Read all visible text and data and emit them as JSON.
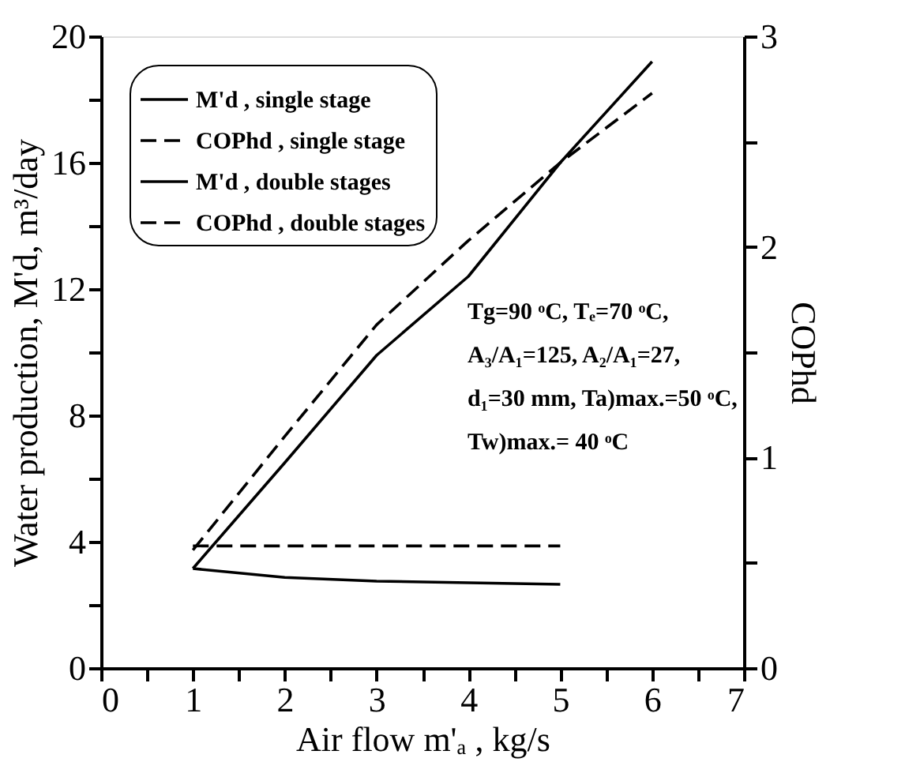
{
  "chart_data": {
    "type": "line",
    "xlabel": "Air flow m'ₐ , kg/s",
    "ylabel": "Water production, M'd, m³/day",
    "y2label": "COPhd",
    "series": [
      {
        "name": "M'd , single stage",
        "color": "#000000",
        "line_style": "solid",
        "x": [
          1,
          2,
          3,
          4,
          5
        ],
        "values": [
          3.15,
          2.87,
          2.75,
          2.7,
          2.65
        ]
      },
      {
        "name": "COPhd , single stage",
        "color": "#000000",
        "line_style": "dashed",
        "axis": "y2",
        "x": [
          1,
          5
        ],
        "values": [
          0.58,
          0.58
        ]
      },
      {
        "name": "M'd , double stages",
        "color": "#000000",
        "line_style": "solid",
        "x": [
          1,
          2,
          3,
          4,
          5,
          6
        ],
        "values": [
          3.15,
          6.5,
          9.9,
          12.4,
          16.0,
          19.2
        ]
      },
      {
        "name": "COPhd , double stages",
        "color": "#000000",
        "line_style": "dashed",
        "axis": "y2",
        "x": [
          1,
          2,
          3,
          4,
          5,
          6
        ],
        "values": [
          0.56,
          1.1,
          1.63,
          2.03,
          2.4,
          2.73
        ]
      }
    ],
    "xlim": [
      0,
      7
    ],
    "xticks": [
      0,
      {
        "value": 0.5,
        "label": null
      },
      1,
      {
        "value": 1.5,
        "label": null
      },
      2,
      {
        "value": 2.5,
        "label": null
      },
      3,
      {
        "value": 3.5,
        "label": null
      },
      4,
      {
        "value": 4.5,
        "label": null
      },
      5,
      {
        "value": 5.5,
        "label": null
      },
      6,
      {
        "value": 6.5,
        "label": null
      },
      7
    ],
    "ylim": [
      0,
      20
    ],
    "yticks": [
      0,
      {
        "value": 2,
        "label": null
      },
      4,
      {
        "value": 6,
        "label": null
      },
      8,
      {
        "value": 10,
        "label": null
      },
      12,
      {
        "value": 14,
        "label": null
      },
      16,
      {
        "value": 18,
        "label": null
      },
      20
    ],
    "y2lim": [
      0,
      3
    ],
    "y2ticks": [
      0,
      {
        "value": 0.5,
        "label": null
      },
      1,
      {
        "value": 1.5,
        "label": null
      },
      2,
      {
        "value": 2.5,
        "label": null
      },
      3
    ],
    "annotations": [
      "Tg=90 ᵒC,  Tₑ=70 ᵒC,",
      "A₃/A₁=125,  A₂/A₁=27,",
      "d₁=30 mm, Ta)max.=50 ᵒC,",
      "Tw)max.= 40 ᵒC"
    ],
    "legend": "top left",
    "grid": false,
    "marker": "none"
  }
}
